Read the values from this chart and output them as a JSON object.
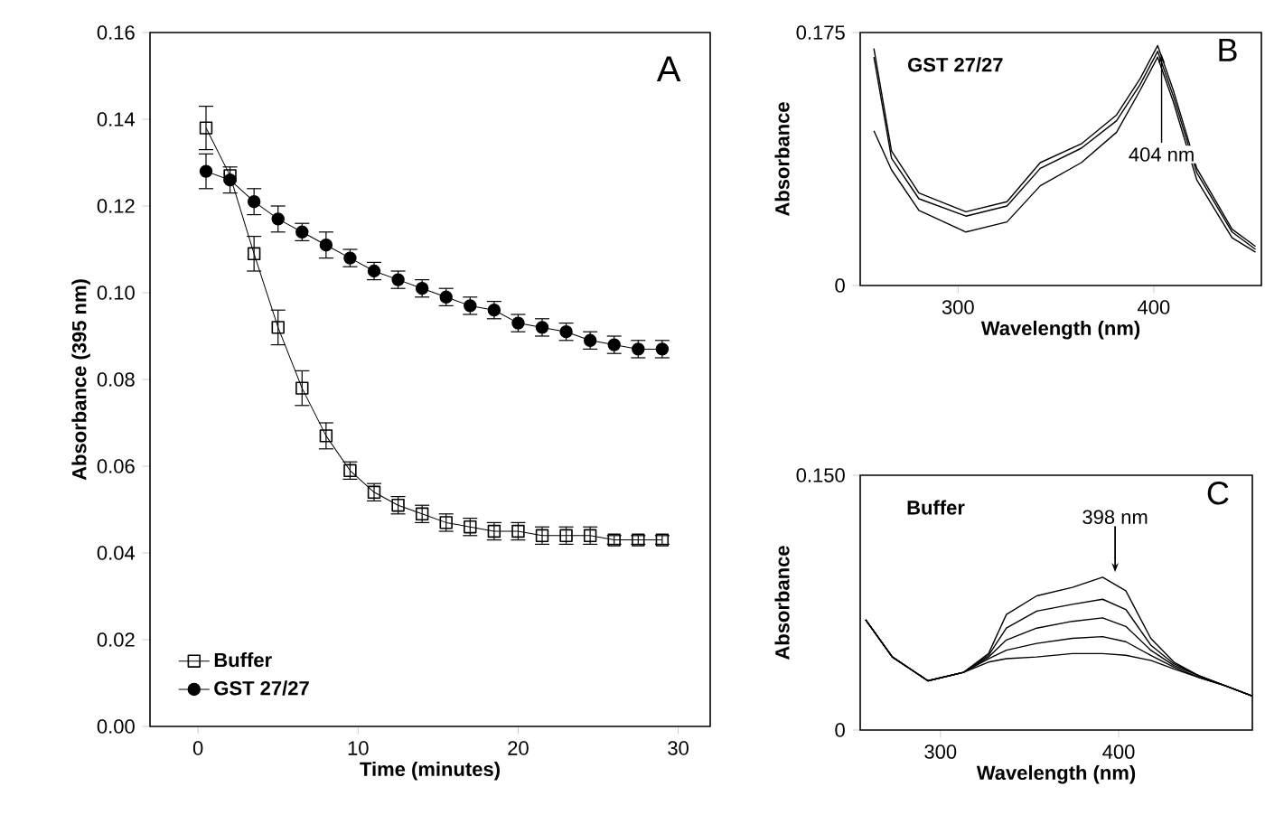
{
  "chart_data": [
    {
      "type": "line",
      "title": "A",
      "xlabel": "Time (minutes)",
      "ylabel": "Absorbance (395 nm)",
      "xlim": [
        -3,
        32
      ],
      "ylim": [
        0,
        0.16
      ],
      "xticks": [
        0,
        10,
        20,
        30
      ],
      "yticks": [
        {
          "value": 0,
          "label": "0.00"
        },
        {
          "value": 0.02,
          "label": "0.02"
        },
        {
          "value": 0.04,
          "label": "0.04"
        },
        {
          "value": 0.06,
          "label": "0.06"
        },
        {
          "value": 0.08,
          "label": "0.08"
        },
        {
          "value": 0.1,
          "label": "0.10"
        },
        {
          "value": 0.12,
          "label": "0.12"
        },
        {
          "value": 0.14,
          "label": "0.14"
        },
        {
          "value": 0.16,
          "label": "0.16"
        }
      ],
      "x": [
        0.5,
        2,
        3.5,
        5,
        6.5,
        8,
        9.5,
        11,
        12.5,
        14,
        15.5,
        17,
        18.5,
        20,
        21.5,
        23,
        24.5,
        26,
        27.5,
        29
      ],
      "legend": "bottom left",
      "series": [
        {
          "name": "Buffer",
          "color": "#000000",
          "marker": "square",
          "values": [
            0.138,
            0.127,
            0.109,
            0.092,
            0.078,
            0.067,
            0.059,
            0.054,
            0.051,
            0.049,
            0.047,
            0.046,
            0.045,
            0.045,
            0.044,
            0.044,
            0.044,
            0.043,
            0.043,
            0.043
          ],
          "errors": [
            0.005,
            null,
            0.004,
            0.004,
            0.004,
            0.003,
            0.002,
            0.002,
            0.002,
            0.002,
            0.002,
            0.002,
            0.002,
            0.002,
            0.002,
            0.002,
            0.002,
            0.001,
            0.001,
            0.001
          ]
        },
        {
          "name": "GST 27/27",
          "color": "#000000",
          "marker": "circle",
          "values": [
            0.128,
            0.126,
            0.121,
            0.117,
            0.114,
            0.111,
            0.108,
            0.105,
            0.103,
            0.101,
            0.099,
            0.097,
            0.096,
            0.093,
            0.092,
            0.091,
            0.089,
            0.088,
            0.087,
            0.087
          ],
          "errors": [
            0.004,
            0.003,
            0.003,
            0.003,
            0.002,
            0.003,
            0.002,
            0.002,
            0.002,
            0.002,
            0.002,
            0.002,
            0.002,
            0.002,
            0.002,
            0.002,
            0.002,
            0.002,
            0.002,
            0.002
          ]
        }
      ]
    },
    {
      "type": "line",
      "title": "B",
      "xlabel": "Wavelength (nm)",
      "ylabel": "Absorbance",
      "xlim": [
        250,
        455
      ],
      "ylim": [
        0,
        0.175
      ],
      "xticks": [
        300,
        400
      ],
      "yticks": [
        0,
        0.175
      ],
      "x": [
        257,
        266,
        280,
        304,
        325,
        342,
        363,
        381,
        393,
        402,
        410,
        422,
        440,
        452
      ],
      "marker": "none",
      "annotations": [
        "GST 27/27",
        {
          "text": "404 nm",
          "x": 404,
          "y": 0.16
        }
      ],
      "series": [
        {
          "color": "#000000",
          "values": [
            0.164,
            0.093,
            0.064,
            0.051,
            0.058,
            0.085,
            0.098,
            0.118,
            0.143,
            0.166,
            0.135,
            0.081,
            0.039,
            0.027
          ]
        },
        {
          "color": "#000000",
          "values": [
            0.158,
            0.088,
            0.06,
            0.048,
            0.055,
            0.081,
            0.095,
            0.114,
            0.139,
            0.162,
            0.131,
            0.078,
            0.037,
            0.025
          ]
        },
        {
          "color": "#000000",
          "values": [
            0.107,
            0.08,
            0.052,
            0.037,
            0.044,
            0.069,
            0.085,
            0.106,
            0.135,
            0.158,
            0.127,
            0.073,
            0.033,
            0.023
          ]
        }
      ]
    },
    {
      "type": "line",
      "title": "C",
      "xlabel": "Wavelength (nm)",
      "ylabel": "Absorbance",
      "xlim": [
        255,
        475
      ],
      "ylim": [
        0,
        0.15
      ],
      "xticks": [
        300,
        400
      ],
      "yticks": [
        0,
        {
          "value": 0.15,
          "label": "0.150"
        }
      ],
      "x": [
        258,
        273,
        293,
        313,
        327,
        337,
        354,
        374,
        391,
        404,
        418,
        431,
        445,
        460,
        475
      ],
      "marker": "none",
      "annotations": [
        "Buffer",
        {
          "text": "398 nm",
          "x": 398,
          "y": 0.09
        }
      ],
      "series": [
        {
          "color": "#000000",
          "values": [
            0.065,
            0.043,
            0.029,
            0.034,
            0.045,
            0.068,
            0.079,
            0.084,
            0.09,
            0.082,
            0.054,
            0.04,
            0.032,
            0.026,
            0.02
          ]
        },
        {
          "color": "#000000",
          "values": [
            0.065,
            0.043,
            0.029,
            0.034,
            0.044,
            0.06,
            0.07,
            0.074,
            0.077,
            0.071,
            0.05,
            0.039,
            0.032,
            0.026,
            0.02
          ]
        },
        {
          "color": "#000000",
          "values": [
            0.065,
            0.043,
            0.029,
            0.034,
            0.043,
            0.053,
            0.06,
            0.064,
            0.066,
            0.061,
            0.047,
            0.038,
            0.032,
            0.026,
            0.02
          ]
        },
        {
          "color": "#000000",
          "values": [
            0.065,
            0.043,
            0.029,
            0.034,
            0.042,
            0.047,
            0.051,
            0.054,
            0.055,
            0.052,
            0.044,
            0.037,
            0.031,
            0.026,
            0.02
          ]
        },
        {
          "color": "#000000",
          "values": [
            0.065,
            0.043,
            0.029,
            0.034,
            0.04,
            0.042,
            0.043,
            0.045,
            0.045,
            0.044,
            0.041,
            0.036,
            0.031,
            0.026,
            0.02
          ]
        }
      ]
    }
  ]
}
